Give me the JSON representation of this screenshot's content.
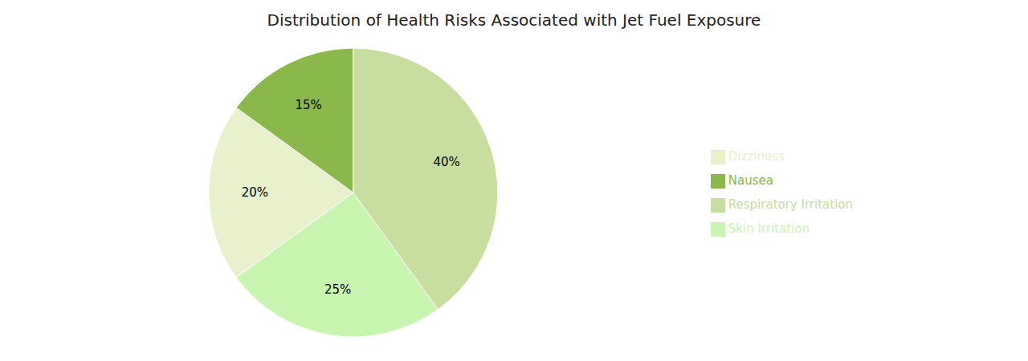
{
  "chart_data": {
    "type": "pie",
    "title": "Distribution of Health Risks Associated with Jet Fuel Exposure",
    "categories": [
      "Respiratory Irritation",
      "Skin Irritation",
      "Dizziness",
      "Nausea"
    ],
    "values": [
      40,
      25,
      20,
      15
    ],
    "value_labels": [
      "40%",
      "25%",
      "20%",
      "15%"
    ],
    "colors": [
      "#c8dea0",
      "#c8f5b0",
      "#e8f0cc",
      "#8ab84a"
    ],
    "data_labels": true,
    "legend": "right"
  }
}
